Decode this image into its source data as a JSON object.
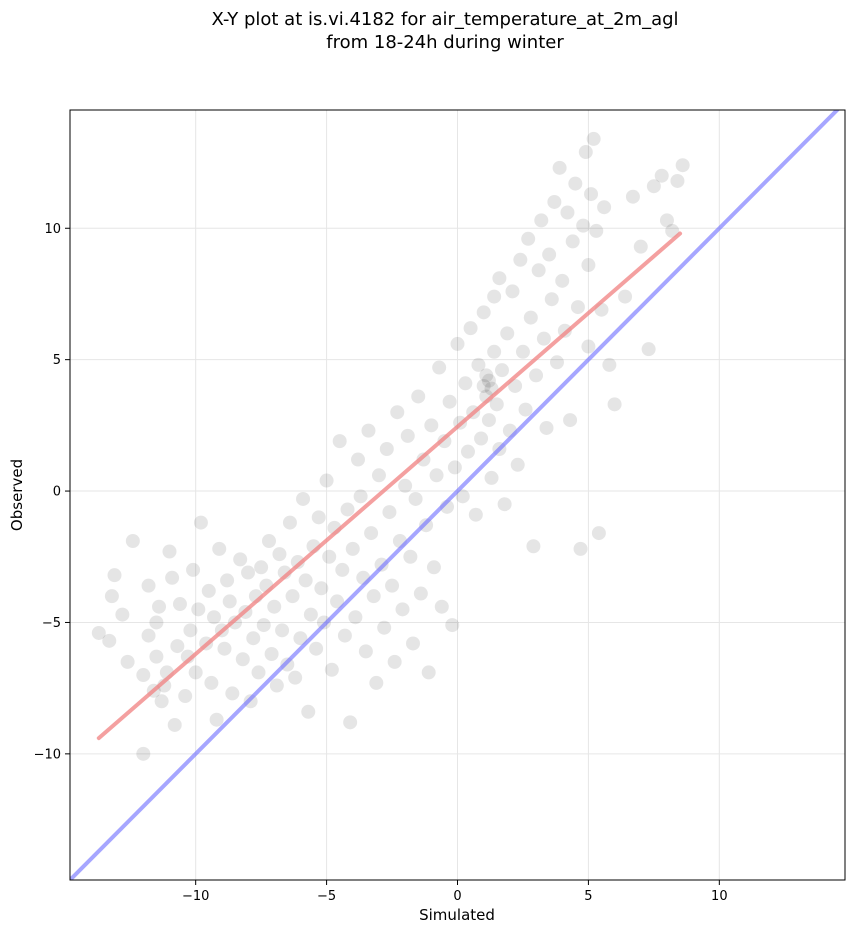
{
  "chart_data": {
    "type": "scatter",
    "title_line1": "X-Y plot at is.vi.4182 for air_temperature_at_2m_agl",
    "title_line2": "from 18-24h during winter",
    "xlabel": "Simulated",
    "ylabel": "Observed",
    "xlim": [
      -14.8,
      14.8
    ],
    "ylim": [
      -14.8,
      14.5
    ],
    "xticks": [
      -10,
      -5,
      0,
      5,
      10
    ],
    "yticks": [
      -10,
      -5,
      0,
      5,
      10
    ],
    "xtick_labels": [
      "−10",
      "−5",
      "0",
      "5",
      "10"
    ],
    "ytick_labels": [
      "−10",
      "−5",
      "0",
      "5",
      "10"
    ],
    "grid": true,
    "colors": {
      "points": "#000000",
      "fit_line": "#f08080",
      "identity_line": "#6a6aff",
      "grid": "#e6e6e6"
    },
    "series": [
      {
        "kind": "points",
        "points": [
          [
            -13.7,
            -5.4
          ],
          [
            -13.3,
            -5.7
          ],
          [
            -13.2,
            -4.0
          ],
          [
            -13.1,
            -3.2
          ],
          [
            -12.8,
            -4.7
          ],
          [
            -12.6,
            -6.5
          ],
          [
            -12.4,
            -1.9
          ],
          [
            -12.0,
            -10.0
          ],
          [
            -12.0,
            -7.0
          ],
          [
            -11.8,
            -5.5
          ],
          [
            -11.8,
            -3.6
          ],
          [
            -11.6,
            -7.6
          ],
          [
            -11.5,
            -6.3
          ],
          [
            -11.5,
            -5.0
          ],
          [
            -11.4,
            -4.4
          ],
          [
            -11.3,
            -8.0
          ],
          [
            -11.2,
            -7.4
          ],
          [
            -11.1,
            -6.9
          ],
          [
            -11.0,
            -2.3
          ],
          [
            -10.9,
            -3.3
          ],
          [
            -10.8,
            -8.9
          ],
          [
            -10.7,
            -5.9
          ],
          [
            -10.6,
            -4.3
          ],
          [
            -10.4,
            -7.8
          ],
          [
            -10.3,
            -6.3
          ],
          [
            -10.2,
            -5.3
          ],
          [
            -10.1,
            -3.0
          ],
          [
            -10.0,
            -6.9
          ],
          [
            -9.9,
            -4.5
          ],
          [
            -9.8,
            -1.2
          ],
          [
            -9.6,
            -5.8
          ],
          [
            -9.5,
            -3.8
          ],
          [
            -9.4,
            -7.3
          ],
          [
            -9.3,
            -4.8
          ],
          [
            -9.2,
            -8.7
          ],
          [
            -9.1,
            -2.2
          ],
          [
            -9.0,
            -5.3
          ],
          [
            -8.9,
            -6.0
          ],
          [
            -8.8,
            -3.4
          ],
          [
            -8.7,
            -4.2
          ],
          [
            -8.6,
            -7.7
          ],
          [
            -8.5,
            -5.0
          ],
          [
            -8.3,
            -2.6
          ],
          [
            -8.2,
            -6.4
          ],
          [
            -8.1,
            -4.6
          ],
          [
            -8.0,
            -3.1
          ],
          [
            -7.9,
            -8.0
          ],
          [
            -7.8,
            -5.6
          ],
          [
            -7.7,
            -4.0
          ],
          [
            -7.6,
            -6.9
          ],
          [
            -7.5,
            -2.9
          ],
          [
            -7.4,
            -5.1
          ],
          [
            -7.3,
            -3.6
          ],
          [
            -7.2,
            -1.9
          ],
          [
            -7.1,
            -6.2
          ],
          [
            -7.0,
            -4.4
          ],
          [
            -6.9,
            -7.4
          ],
          [
            -6.8,
            -2.4
          ],
          [
            -6.7,
            -5.3
          ],
          [
            -6.6,
            -3.1
          ],
          [
            -6.5,
            -6.6
          ],
          [
            -6.4,
            -1.2
          ],
          [
            -6.3,
            -4.0
          ],
          [
            -6.2,
            -7.1
          ],
          [
            -6.1,
            -2.7
          ],
          [
            -6.0,
            -5.6
          ],
          [
            -5.9,
            -0.3
          ],
          [
            -5.8,
            -3.4
          ],
          [
            -5.7,
            -8.4
          ],
          [
            -5.6,
            -4.7
          ],
          [
            -5.5,
            -2.1
          ],
          [
            -5.4,
            -6.0
          ],
          [
            -5.3,
            -1.0
          ],
          [
            -5.2,
            -3.7
          ],
          [
            -5.1,
            -5.0
          ],
          [
            -5.0,
            0.4
          ],
          [
            -4.9,
            -2.5
          ],
          [
            -4.8,
            -6.8
          ],
          [
            -4.7,
            -1.4
          ],
          [
            -4.6,
            -4.2
          ],
          [
            -4.5,
            1.9
          ],
          [
            -4.4,
            -3.0
          ],
          [
            -4.3,
            -5.5
          ],
          [
            -4.2,
            -0.7
          ],
          [
            -4.1,
            -8.8
          ],
          [
            -4.0,
            -2.2
          ],
          [
            -3.9,
            -4.8
          ],
          [
            -3.8,
            1.2
          ],
          [
            -3.7,
            -0.2
          ],
          [
            -3.6,
            -3.3
          ],
          [
            -3.5,
            -6.1
          ],
          [
            -3.4,
            2.3
          ],
          [
            -3.3,
            -1.6
          ],
          [
            -3.2,
            -4.0
          ],
          [
            -3.1,
            -7.3
          ],
          [
            -3.0,
            0.6
          ],
          [
            -2.9,
            -2.8
          ],
          [
            -2.8,
            -5.2
          ],
          [
            -2.7,
            1.6
          ],
          [
            -2.6,
            -0.8
          ],
          [
            -2.5,
            -3.6
          ],
          [
            -2.4,
            -6.5
          ],
          [
            -2.3,
            3.0
          ],
          [
            -2.2,
            -1.9
          ],
          [
            -2.1,
            -4.5
          ],
          [
            -2.0,
            0.2
          ],
          [
            -1.9,
            2.1
          ],
          [
            -1.8,
            -2.5
          ],
          [
            -1.7,
            -5.8
          ],
          [
            -1.6,
            -0.3
          ],
          [
            -1.5,
            3.6
          ],
          [
            -1.4,
            -3.9
          ],
          [
            -1.3,
            1.2
          ],
          [
            -1.2,
            -1.3
          ],
          [
            -1.1,
            -6.9
          ],
          [
            -1.0,
            2.5
          ],
          [
            -0.9,
            -2.9
          ],
          [
            -0.8,
            0.6
          ],
          [
            -0.7,
            4.7
          ],
          [
            -0.6,
            -4.4
          ],
          [
            -0.5,
            1.9
          ],
          [
            -0.4,
            -0.6
          ],
          [
            -0.3,
            3.4
          ],
          [
            -0.2,
            -5.1
          ],
          [
            -0.1,
            0.9
          ],
          [
            0.0,
            5.6
          ],
          [
            0.1,
            2.6
          ],
          [
            0.2,
            -0.2
          ],
          [
            0.3,
            4.1
          ],
          [
            0.4,
            1.5
          ],
          [
            0.5,
            6.2
          ],
          [
            0.6,
            3.0
          ],
          [
            0.7,
            -0.9
          ],
          [
            0.8,
            4.8
          ],
          [
            0.9,
            2.0
          ],
          [
            1.0,
            6.8
          ],
          [
            1.0,
            4.0
          ],
          [
            1.1,
            3.6
          ],
          [
            1.1,
            4.4
          ],
          [
            1.2,
            2.7
          ],
          [
            1.2,
            4.2
          ],
          [
            1.3,
            3.9
          ],
          [
            1.3,
            0.5
          ],
          [
            1.4,
            5.3
          ],
          [
            1.4,
            7.4
          ],
          [
            1.5,
            3.3
          ],
          [
            1.6,
            1.6
          ],
          [
            1.6,
            8.1
          ],
          [
            1.7,
            4.6
          ],
          [
            1.8,
            -0.5
          ],
          [
            1.9,
            6.0
          ],
          [
            2.0,
            2.3
          ],
          [
            2.1,
            7.6
          ],
          [
            2.2,
            4.0
          ],
          [
            2.3,
            1.0
          ],
          [
            2.4,
            8.8
          ],
          [
            2.5,
            5.3
          ],
          [
            2.6,
            3.1
          ],
          [
            2.7,
            9.6
          ],
          [
            2.8,
            6.6
          ],
          [
            2.9,
            -2.1
          ],
          [
            3.0,
            4.4
          ],
          [
            3.1,
            8.4
          ],
          [
            3.2,
            10.3
          ],
          [
            3.3,
            5.8
          ],
          [
            3.4,
            2.4
          ],
          [
            3.5,
            9.0
          ],
          [
            3.6,
            7.3
          ],
          [
            3.7,
            11.0
          ],
          [
            3.8,
            4.9
          ],
          [
            3.9,
            12.3
          ],
          [
            4.0,
            8.0
          ],
          [
            4.1,
            6.1
          ],
          [
            4.2,
            10.6
          ],
          [
            4.3,
            2.7
          ],
          [
            4.4,
            9.5
          ],
          [
            4.5,
            11.7
          ],
          [
            4.6,
            7.0
          ],
          [
            4.7,
            -2.2
          ],
          [
            4.8,
            10.1
          ],
          [
            4.9,
            12.9
          ],
          [
            5.0,
            8.6
          ],
          [
            5.0,
            5.5
          ],
          [
            5.1,
            11.3
          ],
          [
            5.2,
            13.4
          ],
          [
            5.3,
            9.9
          ],
          [
            5.4,
            -1.6
          ],
          [
            5.5,
            6.9
          ],
          [
            5.6,
            10.8
          ],
          [
            5.8,
            4.8
          ],
          [
            6.0,
            3.3
          ],
          [
            6.4,
            7.4
          ],
          [
            6.7,
            11.2
          ],
          [
            7.0,
            9.3
          ],
          [
            7.3,
            5.4
          ],
          [
            7.5,
            11.6
          ],
          [
            7.8,
            12.0
          ],
          [
            8.0,
            10.3
          ],
          [
            8.2,
            9.9
          ],
          [
            8.4,
            11.8
          ],
          [
            8.6,
            12.4
          ]
        ]
      },
      {
        "kind": "fit_line",
        "x": [
          -13.7,
          8.5
        ],
        "y": [
          -9.4,
          9.8
        ]
      },
      {
        "kind": "identity_line",
        "x": [
          -14.8,
          14.8
        ],
        "y": [
          -14.8,
          14.8
        ]
      }
    ]
  }
}
